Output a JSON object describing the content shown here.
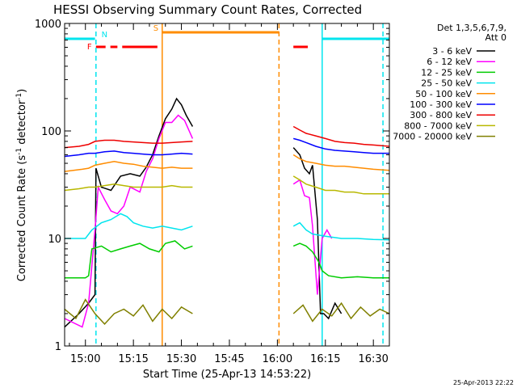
{
  "chart_data": {
    "type": "line",
    "title": "HESSI Observing Summary Count Rates, Corrected",
    "xlabel": "Start Time (25-Apr-13 14:53:22)",
    "ylabel_main": "Corrected Count Rate (s",
    "ylabel_sup1": "-1",
    "ylabel_mid": " detector",
    "ylabel_sup2": "-1",
    "ylabel_end": ")",
    "ylog": true,
    "xlim_minutes": [
      -6.5,
      95
    ],
    "ylim": [
      1,
      1000
    ],
    "x_ticks": [
      {
        "label": "15:00",
        "min": 0
      },
      {
        "label": "15:15",
        "min": 15
      },
      {
        "label": "15:30",
        "min": 30
      },
      {
        "label": "15:45",
        "min": 45
      },
      {
        "label": "16:00",
        "min": 60
      },
      {
        "label": "16:15",
        "min": 75
      },
      {
        "label": "16:30",
        "min": 90
      }
    ],
    "y_ticks": [
      {
        "label": "1",
        "value": 1
      },
      {
        "label": "10",
        "value": 10
      },
      {
        "label": "100",
        "value": 100
      },
      {
        "label": "1000",
        "value": 1000
      }
    ],
    "timestamp": "25-Apr-2013 22:22",
    "legend_header": [
      "Det 1,3,5,6,7,9,",
      "Att 0"
    ],
    "legend_placement": "right",
    "flags": [
      {
        "label": "N",
        "color": "#00e5ee",
        "segments": [
          [
            -6.5,
            3
          ],
          [
            74,
            95
          ]
        ]
      },
      {
        "label": "F",
        "color": "#ff0000",
        "segments": [
          [
            3.3,
            6.3
          ],
          [
            7.8,
            10
          ],
          [
            11.5,
            22.5
          ],
          [
            65,
            69.5
          ]
        ]
      },
      {
        "label": "S",
        "color": "#ff8c00",
        "segments": [
          [
            24,
            60.5
          ]
        ]
      }
    ],
    "vlines": [
      {
        "min": 3.3,
        "color": "#00e5ee",
        "dashed": true
      },
      {
        "min": 24,
        "color": "#ff8c00",
        "dashed": false
      },
      {
        "min": 60.5,
        "color": "#ff8c00",
        "dashed": true
      },
      {
        "min": 74,
        "color": "#00e5ee",
        "dashed": false
      },
      {
        "min": 93,
        "color": "#00e5ee",
        "dashed": true
      }
    ],
    "series": [
      {
        "name": "3 - 6 keV",
        "color": "#000000",
        "points": [
          [
            -6.5,
            1.5
          ],
          [
            -2,
            2
          ],
          [
            1,
            2.5
          ],
          [
            3,
            3
          ],
          [
            3.3,
            45
          ],
          [
            5,
            30
          ],
          [
            8,
            28
          ],
          [
            11,
            38
          ],
          [
            14,
            40
          ],
          [
            17,
            38
          ],
          [
            19,
            46
          ],
          [
            21,
            60
          ],
          [
            23,
            90
          ],
          [
            25,
            130
          ],
          [
            27,
            160
          ],
          [
            28.5,
            200
          ],
          [
            30,
            175
          ],
          [
            31.5,
            140
          ],
          [
            33.5,
            110
          ],
          [
            null,
            null
          ],
          [
            65,
            70
          ],
          [
            67,
            60
          ],
          [
            68.5,
            45
          ],
          [
            70,
            40
          ],
          [
            71,
            48
          ],
          [
            72.5,
            15
          ],
          [
            73.5,
            2
          ],
          [
            74.5,
            2
          ],
          [
            76,
            1.8
          ],
          [
            78,
            2.5
          ],
          [
            80,
            2
          ]
        ]
      },
      {
        "name": "6 - 12 keV",
        "color": "#ff00ff",
        "points": [
          [
            -6.5,
            1.8
          ],
          [
            -1,
            1.5
          ],
          [
            1,
            2.5
          ],
          [
            3,
            12
          ],
          [
            4,
            30
          ],
          [
            6,
            23
          ],
          [
            8,
            18
          ],
          [
            10,
            17
          ],
          [
            12,
            20
          ],
          [
            14,
            30
          ],
          [
            17,
            27
          ],
          [
            19,
            42
          ],
          [
            21,
            55
          ],
          [
            23,
            85
          ],
          [
            25,
            120
          ],
          [
            27,
            120
          ],
          [
            29,
            140
          ],
          [
            31,
            125
          ],
          [
            33.5,
            85
          ],
          [
            null,
            null
          ],
          [
            65,
            32
          ],
          [
            67,
            35
          ],
          [
            68.5,
            25
          ],
          [
            70,
            24
          ],
          [
            71,
            13
          ],
          [
            72.5,
            3
          ],
          [
            74,
            10
          ],
          [
            75.5,
            12
          ],
          [
            77,
            10
          ]
        ]
      },
      {
        "name": "12 - 25 keV",
        "color": "#00cc00",
        "points": [
          [
            -6.5,
            4.3
          ],
          [
            0,
            4.3
          ],
          [
            1,
            4.5
          ],
          [
            2,
            8
          ],
          [
            5,
            8.5
          ],
          [
            8,
            7.5
          ],
          [
            11,
            8
          ],
          [
            14,
            8.5
          ],
          [
            17,
            9
          ],
          [
            20,
            8
          ],
          [
            23,
            7.5
          ],
          [
            25,
            9
          ],
          [
            28,
            9.5
          ],
          [
            31,
            8
          ],
          [
            33.5,
            8.5
          ],
          [
            null,
            null
          ],
          [
            65,
            8.5
          ],
          [
            67,
            9
          ],
          [
            69,
            8.5
          ],
          [
            71,
            7.5
          ],
          [
            73,
            6
          ],
          [
            74,
            5
          ],
          [
            76,
            4.5
          ],
          [
            80,
            4.3
          ],
          [
            85,
            4.4
          ],
          [
            90,
            4.3
          ],
          [
            95,
            4.3
          ]
        ]
      },
      {
        "name": "25 - 50 keV",
        "color": "#00e5ee",
        "points": [
          [
            -6.5,
            10
          ],
          [
            0,
            10
          ],
          [
            2,
            12
          ],
          [
            5,
            14
          ],
          [
            8,
            15
          ],
          [
            11,
            17
          ],
          [
            13,
            16
          ],
          [
            15,
            14
          ],
          [
            18,
            13
          ],
          [
            21,
            12.5
          ],
          [
            24,
            13
          ],
          [
            27,
            12.5
          ],
          [
            30,
            12
          ],
          [
            33.5,
            13
          ],
          [
            null,
            null
          ],
          [
            65,
            13
          ],
          [
            67,
            14
          ],
          [
            69,
            12
          ],
          [
            71,
            11
          ],
          [
            75,
            10.5
          ],
          [
            80,
            10
          ],
          [
            85,
            10
          ],
          [
            90,
            9.8
          ],
          [
            95,
            9.7
          ]
        ]
      },
      {
        "name": "50 - 100 keV",
        "color": "#ff8c00",
        "points": [
          [
            -6.5,
            42
          ],
          [
            -1,
            44
          ],
          [
            1,
            45
          ],
          [
            3,
            48
          ],
          [
            6,
            50
          ],
          [
            9,
            52
          ],
          [
            12,
            50
          ],
          [
            15,
            49
          ],
          [
            18,
            47
          ],
          [
            21,
            46
          ],
          [
            24,
            45
          ],
          [
            27,
            46
          ],
          [
            30,
            45
          ],
          [
            33.5,
            45
          ],
          [
            null,
            null
          ],
          [
            65,
            60
          ],
          [
            67,
            55
          ],
          [
            69,
            52
          ],
          [
            72,
            50
          ],
          [
            75,
            48
          ],
          [
            78,
            47
          ],
          [
            81,
            47
          ],
          [
            84,
            46
          ],
          [
            87,
            45
          ],
          [
            90,
            44
          ],
          [
            95,
            43
          ]
        ]
      },
      {
        "name": "100 - 300 keV",
        "color": "#0000ff",
        "points": [
          [
            -6.5,
            58
          ],
          [
            -2,
            60
          ],
          [
            1,
            62
          ],
          [
            3,
            62
          ],
          [
            6,
            64
          ],
          [
            9,
            65
          ],
          [
            12,
            63
          ],
          [
            15,
            62
          ],
          [
            18,
            61
          ],
          [
            21,
            60
          ],
          [
            24,
            60
          ],
          [
            27,
            61
          ],
          [
            30,
            62
          ],
          [
            33.5,
            61
          ],
          [
            null,
            null
          ],
          [
            65,
            85
          ],
          [
            67,
            82
          ],
          [
            69,
            78
          ],
          [
            72,
            72
          ],
          [
            75,
            68
          ],
          [
            78,
            66
          ],
          [
            81,
            65
          ],
          [
            84,
            64
          ],
          [
            87,
            63
          ],
          [
            90,
            62
          ],
          [
            95,
            62
          ]
        ]
      },
      {
        "name": "300 - 800 keV",
        "color": "#ee0000",
        "points": [
          [
            -6.5,
            70
          ],
          [
            -2,
            72
          ],
          [
            1,
            75
          ],
          [
            3,
            80
          ],
          [
            6,
            82
          ],
          [
            9,
            82
          ],
          [
            12,
            80
          ],
          [
            15,
            79
          ],
          [
            18,
            78
          ],
          [
            21,
            77
          ],
          [
            24,
            77
          ],
          [
            27,
            78
          ],
          [
            30,
            79
          ],
          [
            33.5,
            80
          ],
          [
            null,
            null
          ],
          [
            65,
            110
          ],
          [
            67,
            102
          ],
          [
            69,
            95
          ],
          [
            72,
            90
          ],
          [
            75,
            85
          ],
          [
            78,
            80
          ],
          [
            81,
            78
          ],
          [
            84,
            77
          ],
          [
            87,
            75
          ],
          [
            90,
            74
          ],
          [
            95,
            72
          ]
        ]
      },
      {
        "name": "800 - 7000 keV",
        "color": "#b8b800",
        "points": [
          [
            -6.5,
            28
          ],
          [
            -2,
            29
          ],
          [
            1,
            30
          ],
          [
            3,
            30
          ],
          [
            6,
            31
          ],
          [
            9,
            32
          ],
          [
            12,
            31
          ],
          [
            15,
            30
          ],
          [
            18,
            30
          ],
          [
            21,
            30
          ],
          [
            24,
            30
          ],
          [
            27,
            31
          ],
          [
            30,
            30
          ],
          [
            33.5,
            30
          ],
          [
            null,
            null
          ],
          [
            65,
            38
          ],
          [
            67,
            35
          ],
          [
            69,
            32
          ],
          [
            72,
            30
          ],
          [
            75,
            28
          ],
          [
            78,
            28
          ],
          [
            81,
            27
          ],
          [
            84,
            27
          ],
          [
            87,
            26
          ],
          [
            90,
            26
          ],
          [
            95,
            26
          ]
        ]
      },
      {
        "name": "7000 - 20000 keV",
        "color": "#808000",
        "points": [
          [
            -6.5,
            2.2
          ],
          [
            -3,
            1.8
          ],
          [
            0,
            2.7
          ],
          [
            3,
            2
          ],
          [
            6,
            1.6
          ],
          [
            9,
            2
          ],
          [
            12,
            2.2
          ],
          [
            15,
            1.9
          ],
          [
            18,
            2.4
          ],
          [
            21,
            1.7
          ],
          [
            24,
            2.2
          ],
          [
            27,
            1.8
          ],
          [
            30,
            2.3
          ],
          [
            33.5,
            2
          ],
          [
            null,
            null
          ],
          [
            65,
            2
          ],
          [
            68,
            2.4
          ],
          [
            71,
            1.7
          ],
          [
            74,
            2.2
          ],
          [
            77,
            1.9
          ],
          [
            80,
            2.5
          ],
          [
            83,
            1.8
          ],
          [
            86,
            2.3
          ],
          [
            89,
            1.9
          ],
          [
            92,
            2.2
          ],
          [
            95,
            2
          ]
        ]
      }
    ]
  }
}
